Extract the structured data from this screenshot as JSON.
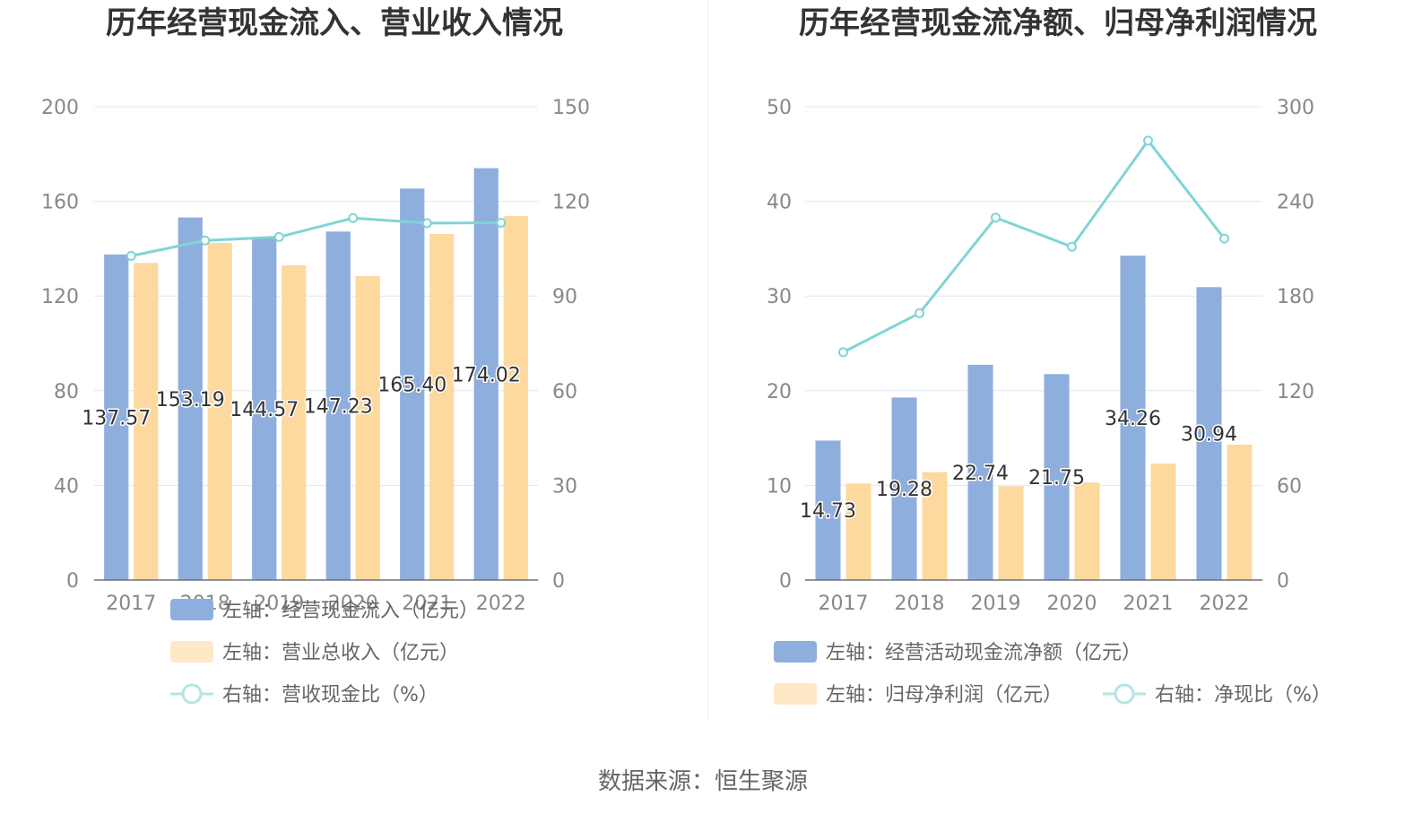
{
  "source": "数据来源：恒生聚源",
  "chart_data": [
    {
      "type": "bar",
      "title": "历年经营现金流入、营业收入情况",
      "categories": [
        "2017",
        "2018",
        "2019",
        "2020",
        "2021",
        "2022"
      ],
      "y_left": {
        "ylim": [
          0,
          200
        ],
        "ticks": [
          0,
          40,
          80,
          120,
          160,
          200
        ]
      },
      "y_right": {
        "ylim": [
          0,
          150
        ],
        "ticks": [
          0,
          30,
          60,
          90,
          120,
          150
        ]
      },
      "grid": true,
      "legend_position": "bottom",
      "series": [
        {
          "name": "左轴：经营现金流入（亿元）",
          "type": "bar",
          "axis": "left",
          "color": "#8eaedd",
          "values": [
            137.57,
            153.19,
            144.57,
            147.23,
            165.4,
            174.02
          ],
          "data_labels": [
            "137.57",
            "153.19",
            "144.57",
            "147.23",
            "165.40",
            "174.02"
          ]
        },
        {
          "name": "左轴：营业总收入（亿元）",
          "type": "bar",
          "axis": "left",
          "color": "#fdd9a0",
          "values": [
            134.0,
            142.4,
            133.0,
            128.4,
            146.2,
            153.8
          ]
        },
        {
          "name": "右轴：营收现金比（%）",
          "type": "line",
          "axis": "right",
          "color": "#80d4d6",
          "values": [
            102.7,
            107.6,
            108.7,
            114.7,
            113.1,
            113.2
          ]
        }
      ]
    },
    {
      "type": "bar",
      "title": "历年经营现金流净额、归母净利润情况",
      "categories": [
        "2017",
        "2018",
        "2019",
        "2020",
        "2021",
        "2022"
      ],
      "y_left": {
        "ylim": [
          0,
          50
        ],
        "ticks": [
          0,
          10,
          20,
          30,
          40,
          50
        ]
      },
      "y_right": {
        "ylim": [
          0,
          300
        ],
        "ticks": [
          0,
          60,
          120,
          180,
          240,
          300
        ]
      },
      "grid": true,
      "legend_position": "bottom",
      "series": [
        {
          "name": "左轴：经营活动现金流净额（亿元）",
          "type": "bar",
          "axis": "left",
          "color": "#8eaedd",
          "values": [
            14.73,
            19.28,
            22.74,
            21.75,
            34.26,
            30.94
          ],
          "data_labels": [
            "14.73",
            "19.28",
            "22.74",
            "21.75",
            "34.26",
            "30.94"
          ]
        },
        {
          "name": "左轴：归母净利润（亿元）",
          "type": "bar",
          "axis": "left",
          "color": "#fdd9a0",
          "values": [
            10.2,
            11.4,
            9.9,
            10.3,
            12.3,
            14.3
          ]
        },
        {
          "name": "右轴：净现比（%）",
          "type": "line",
          "axis": "right",
          "color": "#80d4d6",
          "values": [
            144.4,
            169.1,
            229.7,
            211.2,
            278.5,
            216.4
          ]
        }
      ]
    }
  ]
}
